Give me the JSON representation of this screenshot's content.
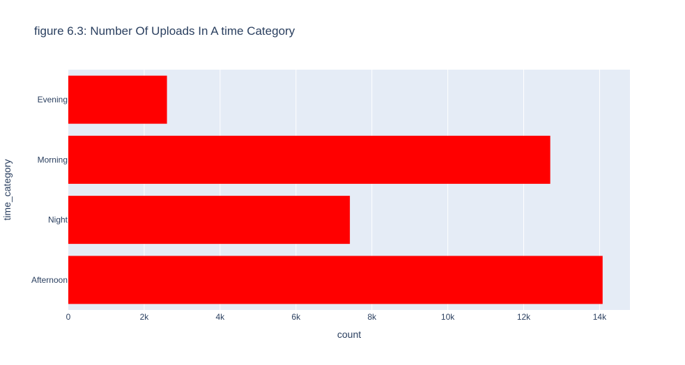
{
  "chart_data": {
    "type": "bar",
    "orientation": "horizontal",
    "title": "figure 6.3: Number Of Uploads In A time Category",
    "xlabel": "count",
    "ylabel": "time_category",
    "categories": [
      "Afternoon",
      "Night",
      "Morning",
      "Evening"
    ],
    "values": [
      14080,
      7420,
      12700,
      2600
    ],
    "xlim": [
      0,
      14800
    ],
    "xticks": [
      {
        "value": 0,
        "label": "0"
      },
      {
        "value": 2000,
        "label": "2k"
      },
      {
        "value": 4000,
        "label": "4k"
      },
      {
        "value": 6000,
        "label": "6k"
      },
      {
        "value": 8000,
        "label": "8k"
      },
      {
        "value": 10000,
        "label": "10k"
      },
      {
        "value": 12000,
        "label": "12k"
      },
      {
        "value": 14000,
        "label": "14k"
      }
    ],
    "grid": true,
    "colors": {
      "bar": "#ff0000",
      "plot_background": "#e5ecf6",
      "grid": "#ffffff",
      "text": "#2a3f5f"
    }
  }
}
